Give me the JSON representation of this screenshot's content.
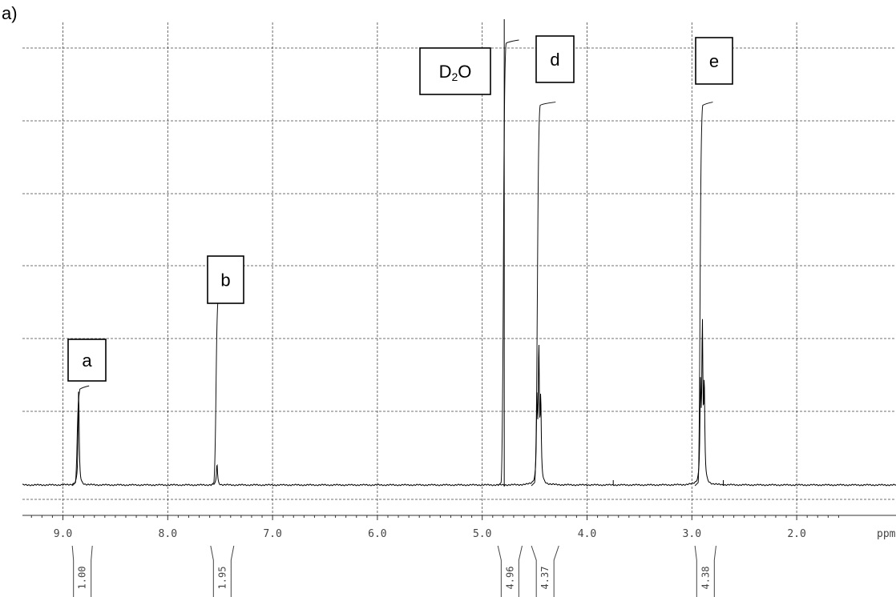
{
  "panel_label": "a)",
  "chart_data": {
    "type": "line",
    "title": "",
    "xlabel": "",
    "ylabel": "",
    "x_unit": "ppm",
    "x_reversed": true,
    "xlim": [
      9.0,
      2.0
    ],
    "x_ticks": [
      "9.0",
      "8.0",
      "7.0",
      "6.0",
      "5.0",
      "4.0",
      "3.0",
      "2.0"
    ],
    "grid": true,
    "peaks": [
      {
        "label": "a",
        "shift": 8.85,
        "intensity": 0.22
      },
      {
        "label": "b",
        "shift": 7.53,
        "intensity": 0.05
      },
      {
        "label": "D",
        "label_sub": "2",
        "label_suffix": "O",
        "shift": 4.79,
        "intensity": 1.0
      },
      {
        "label": "d",
        "shift": 4.46,
        "intensity": 0.3
      },
      {
        "label": "e",
        "shift": 2.9,
        "intensity": 0.35
      }
    ],
    "integrals": [
      {
        "shift_start": 8.75,
        "shift_end": 8.88,
        "value": "1.00",
        "rise": 0.22
      },
      {
        "shift_start": 7.4,
        "shift_end": 7.56,
        "value": "1.95",
        "rise": 0.44
      },
      {
        "shift_start": 4.65,
        "shift_end": 4.82,
        "value": "4.96",
        "rise": 1.0
      },
      {
        "shift_start": 4.3,
        "shift_end": 4.5,
        "value": "4.37",
        "rise": 0.86
      },
      {
        "shift_start": 2.8,
        "shift_end": 2.94,
        "value": "4.38",
        "rise": 0.86
      }
    ]
  }
}
